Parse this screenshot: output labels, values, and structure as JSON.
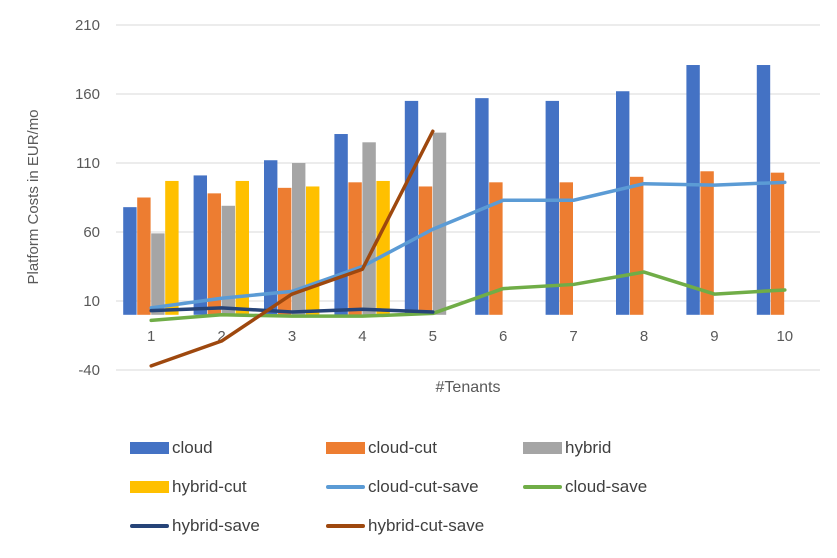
{
  "colors": {
    "background": "#FFFFFF",
    "gridline": "#D9D9D9",
    "axis_text": "#595959",
    "legend_text": "#3F3F3F"
  },
  "chart_data": {
    "type": "bar",
    "title": "",
    "xlabel": "#Tenants",
    "ylabel": "Platform Costs in EUR/mo",
    "categories": [
      1,
      2,
      3,
      4,
      5,
      6,
      7,
      8,
      9,
      10
    ],
    "ylim": [
      -40,
      210
    ],
    "yticks": [
      210,
      160,
      110,
      60,
      10,
      -40
    ],
    "grid": "horizontal",
    "legend_position": "bottom",
    "series": [
      {
        "name": "cloud",
        "type": "bar",
        "color": "#4472C4",
        "values": [
          78,
          101,
          112,
          131,
          155,
          157,
          155,
          162,
          181,
          181
        ]
      },
      {
        "name": "cloud-cut",
        "type": "bar",
        "color": "#ED7D31",
        "values": [
          85,
          88,
          92,
          96,
          93,
          96,
          96,
          100,
          104,
          103
        ]
      },
      {
        "name": "hybrid",
        "type": "bar",
        "color": "#A5A5A5",
        "values": [
          59,
          79,
          110,
          125,
          132,
          null,
          null,
          null,
          null,
          null
        ]
      },
      {
        "name": "hybrid-cut",
        "type": "bar",
        "color": "#FFC000",
        "values": [
          97,
          97,
          93,
          97,
          null,
          null,
          null,
          null,
          null,
          null
        ]
      },
      {
        "name": "cloud-cut-save",
        "type": "line",
        "color": "#5B9BD5",
        "values": [
          5,
          12,
          17,
          35,
          62,
          83,
          83,
          95,
          94,
          96
        ]
      },
      {
        "name": "cloud-save",
        "type": "line",
        "color": "#70AD47",
        "values": [
          -4,
          0,
          -1,
          -1,
          1,
          19,
          22,
          31,
          15,
          18
        ]
      },
      {
        "name": "hybrid-save",
        "type": "line",
        "color": "#264478",
        "values": [
          3,
          5,
          2,
          4,
          2,
          null,
          null,
          null,
          null,
          null
        ]
      },
      {
        "name": "hybrid-cut-save",
        "type": "line",
        "color": "#9E480E",
        "values": [
          -37,
          -19,
          15,
          33,
          133,
          null,
          null,
          null,
          null,
          null
        ]
      }
    ]
  }
}
